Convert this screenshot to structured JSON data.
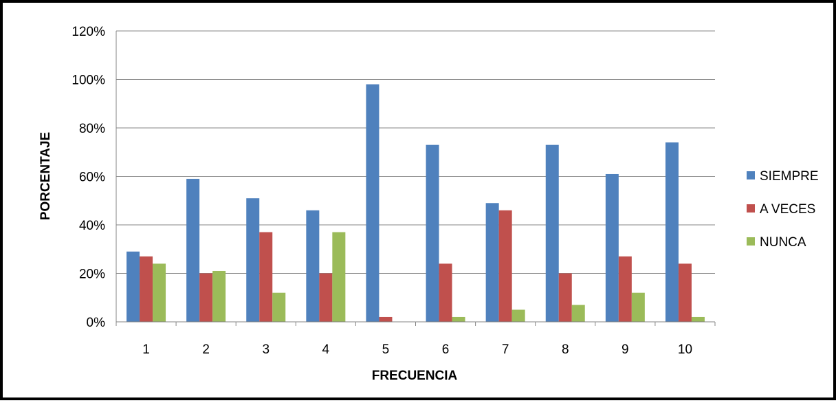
{
  "chart_data": {
    "type": "bar",
    "categories": [
      "1",
      "2",
      "3",
      "4",
      "5",
      "6",
      "7",
      "8",
      "9",
      "10"
    ],
    "series": [
      {
        "name": "SIEMPRE",
        "color": "#4F81BD",
        "values": [
          29,
          59,
          51,
          46,
          98,
          73,
          49,
          73,
          61,
          74
        ]
      },
      {
        "name": "A VECES",
        "color": "#C0504D",
        "values": [
          27,
          20,
          37,
          20,
          2,
          24,
          46,
          20,
          27,
          24
        ]
      },
      {
        "name": "NUNCA",
        "color": "#9BBB59",
        "values": [
          24,
          21,
          12,
          37,
          0,
          2,
          5,
          7,
          12,
          2
        ]
      }
    ],
    "xlabel": "FRECUENCIA",
    "ylabel": "PORCENTAJE",
    "ylim": [
      0,
      120
    ],
    "yticks": [
      "0%",
      "20%",
      "40%",
      "60%",
      "80%",
      "100%",
      "120%"
    ],
    "grid": true,
    "legend_position": "right"
  }
}
